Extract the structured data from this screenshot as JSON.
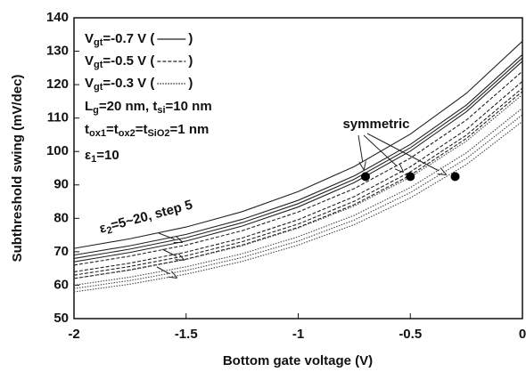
{
  "chart_data": {
    "type": "line",
    "xlabel": "Bottom gate voltage (V)",
    "ylabel": "Subthreshold swing (mV/dec)",
    "x": [
      -2,
      -1.75,
      -1.5,
      -1.25,
      -1,
      -0.75,
      -0.5,
      -0.25,
      0
    ],
    "xlim": [
      -2,
      0
    ],
    "xticks": [
      -2,
      -1.5,
      -1,
      -0.5,
      0
    ],
    "ylim": [
      50,
      140
    ],
    "yticks": [
      50,
      60,
      70,
      80,
      90,
      100,
      110,
      120,
      130,
      140
    ],
    "series": [
      {
        "dash": "solid",
        "color": "#222",
        "values": [
          71,
          73.9,
          77.4,
          82.0,
          88.0,
          95.5,
          105.2,
          117.4,
          133
        ]
      },
      {
        "dash": "solid",
        "color": "#222",
        "values": [
          69,
          71.8,
          75.2,
          79.7,
          85.4,
          92.7,
          102.1,
          113.9,
          129
        ]
      },
      {
        "dash": "solid",
        "color": "#222",
        "values": [
          68,
          70.8,
          74.2,
          78.7,
          84.4,
          91.7,
          101.1,
          112.9,
          128
        ]
      },
      {
        "dash": "solid",
        "color": "#222",
        "values": [
          67,
          69.8,
          73.2,
          77.7,
          83.4,
          90.7,
          100.1,
          111.9,
          127
        ]
      },
      {
        "dash": "dashed",
        "color": "#222",
        "values": [
          66,
          68.7,
          72.0,
          76.3,
          81.9,
          88.9,
          98.0,
          109.4,
          124
        ]
      },
      {
        "dash": "dashed",
        "color": "#222",
        "values": [
          64,
          66.6,
          69.9,
          74.1,
          79.6,
          86.5,
          95.4,
          106.6,
          121
        ]
      },
      {
        "dash": "dashed",
        "color": "#222",
        "values": [
          63,
          65.6,
          68.8,
          73.0,
          78.3,
          85.1,
          93.9,
          104.9,
          119
        ]
      },
      {
        "dash": "dashed",
        "color": "#222",
        "values": [
          62,
          64.6,
          67.8,
          72.0,
          77.3,
          84.1,
          92.9,
          103.9,
          118
        ]
      },
      {
        "dash": "dotted",
        "color": "#444",
        "values": [
          62,
          64.5,
          67.7,
          71.8,
          77.1,
          83.7,
          92.3,
          103.1,
          117
        ]
      },
      {
        "dash": "dotted",
        "color": "#444",
        "values": [
          60,
          62.4,
          65.5,
          69.4,
          74.5,
          80.9,
          89.2,
          99.6,
          113
        ]
      },
      {
        "dash": "dotted",
        "color": "#444",
        "values": [
          59,
          61.4,
          64.4,
          68.3,
          73.2,
          79.5,
          87.7,
          97.9,
          111
        ]
      },
      {
        "dash": "dotted",
        "color": "#444",
        "values": [
          58,
          60.3,
          63.3,
          67.1,
          72.0,
          78.1,
          86.1,
          96.1,
          109
        ]
      }
    ],
    "points": {
      "x": [
        -0.7,
        -0.5,
        -0.3
      ],
      "values": [
        92.5,
        92.5,
        92.5
      ],
      "color": "#000",
      "label": "symmetric"
    },
    "legend": [
      {
        "parts": [
          "V",
          "gt",
          "=-0.7 V  ("
        ],
        "close": ")",
        "dash": "solid"
      },
      {
        "parts": [
          "V",
          "gt",
          "=-0.5 V  ("
        ],
        "close": ")",
        "dash": "dashed"
      },
      {
        "parts": [
          "V",
          "gt",
          "=-0.3 V  ("
        ],
        "close": ")",
        "dash": "dotted"
      }
    ],
    "annotations": [
      [
        "L",
        "g",
        "=20 nm, t",
        "si",
        "=10 nm"
      ],
      [
        "t",
        "ox1",
        "=t",
        "ox2",
        "=t",
        "SiO2",
        "=1 nm"
      ],
      [
        "ε",
        "1",
        "=10"
      ],
      [
        "ε",
        "2",
        "=5~20, step 5"
      ]
    ]
  }
}
